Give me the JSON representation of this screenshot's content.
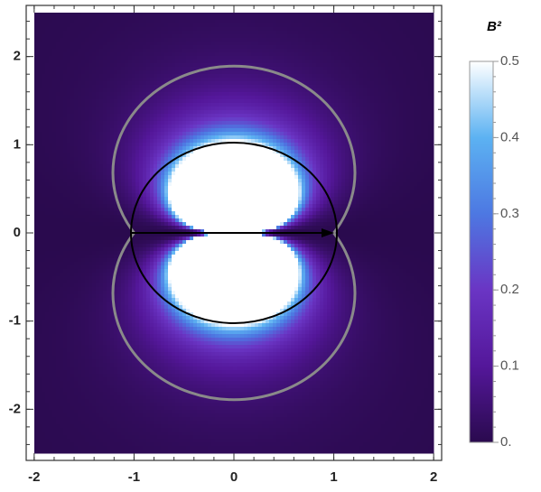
{
  "chart_data": {
    "type": "density",
    "colorbar_title": "B²",
    "xlim": [
      -2.08,
      2.08
    ],
    "ylim": [
      -2.58,
      2.58
    ],
    "x_range": [
      -2,
      2
    ],
    "y_range": [
      -2.5,
      2.5
    ],
    "xticks": [
      -2,
      -1,
      0,
      1,
      2
    ],
    "yticks": [
      -2,
      -1,
      0,
      1,
      2
    ],
    "clim": [
      0,
      0.5
    ],
    "cticks": [
      {
        "value": 0,
        "label": "0."
      },
      0.1,
      0.2,
      0.3,
      0.4,
      0.5
    ],
    "colors": [
      "#2a0a4e",
      "#54179a",
      "#6a35c4",
      "#4d78e2",
      "#5cb2f2",
      "#ffffff"
    ]
  }
}
